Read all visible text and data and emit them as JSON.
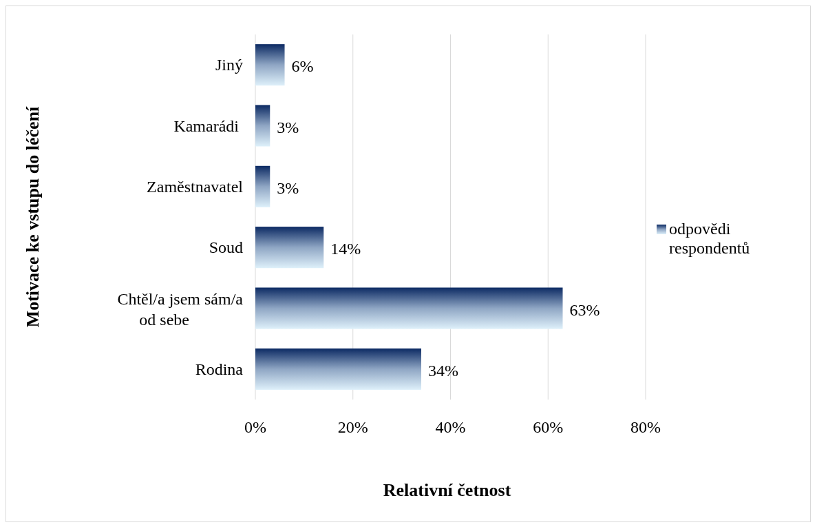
{
  "chart_data": {
    "type": "bar",
    "orientation": "horizontal",
    "categories": [
      "Jiný",
      "Kamarádi ",
      "Zaměstnavatel",
      "Soud",
      "Chtěl/a jsem sám/a od sebe",
      "Rodina"
    ],
    "series": [
      {
        "name": "odpovědi respondentů",
        "color": "#0c2a63",
        "values": [
          6,
          3,
          3,
          14,
          63,
          34
        ],
        "value_labels": [
          "6%",
          "3%",
          "3%",
          "14%",
          "63%",
          "34%"
        ]
      }
    ],
    "xlim": [
      0,
      80
    ],
    "xticks": [
      {
        "value": 0,
        "label": "0%"
      },
      {
        "value": 20,
        "label": "20%"
      },
      {
        "value": 40,
        "label": "40%"
      },
      {
        "value": 60,
        "label": "60%"
      },
      {
        "value": 80,
        "label": "80%"
      }
    ],
    "xlabel": "Relativní četnost",
    "ylabel": "Motivace ke vstupu do léčení",
    "grid": "x",
    "legend": "right"
  }
}
